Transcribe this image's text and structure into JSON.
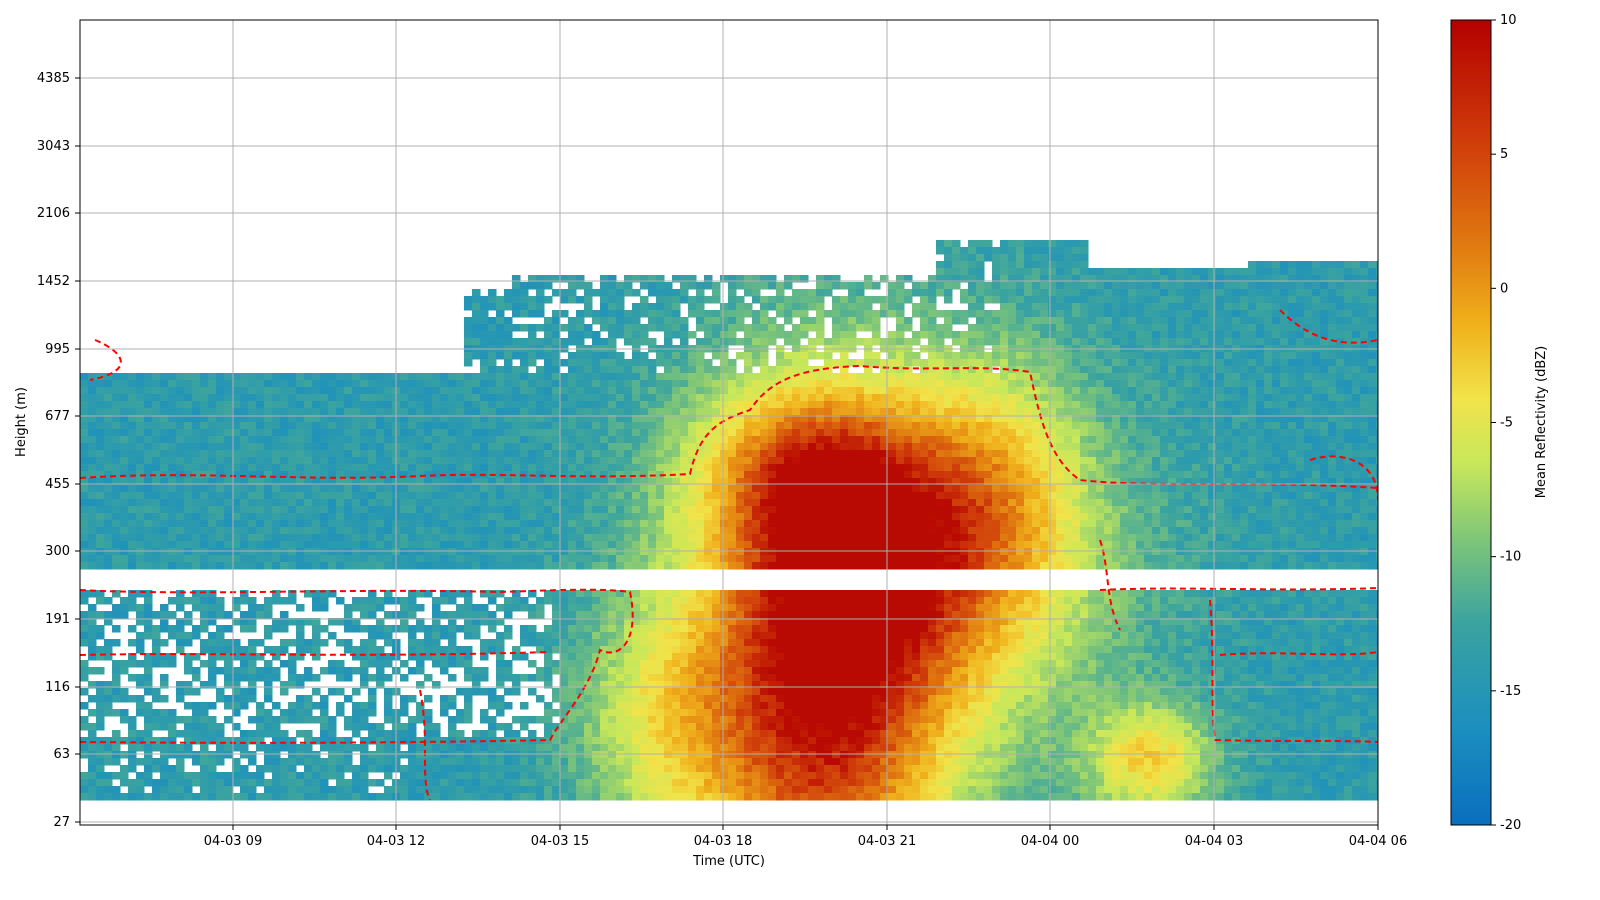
{
  "chart_data": {
    "type": "heatmap",
    "xlabel": "Time (UTC)",
    "ylabel": "Height (m)",
    "colorbar_label": "Mean Reflectivity (dBZ)",
    "x_ticks": [
      "04-03 09",
      "04-03 12",
      "04-03 15",
      "04-03 18",
      "04-03 21",
      "04-04 00",
      "04-04 03",
      "04-04 06"
    ],
    "x_range": [
      "04-03 06:10",
      "04-04 06:00"
    ],
    "y_ticks": [
      "27",
      "63",
      "116",
      "191",
      "300",
      "455",
      "677",
      "995",
      "1452",
      "2106",
      "3043",
      "4385"
    ],
    "y_scale": "log-like (ticks equally spaced)",
    "colorbar_ticks": [
      "10",
      "5",
      "0",
      "-5",
      "-10",
      "-15",
      "-20"
    ],
    "colorbar_range": [
      -20,
      10
    ],
    "colormap": [
      "#0a6ebd",
      "#1b8fbf",
      "#3aa3a0",
      "#7bc47a",
      "#c8e85a",
      "#f2e34a",
      "#f0b21c",
      "#e07a10",
      "#cf3c0a",
      "#b40000"
    ],
    "contour_style": "red dashed (#ff0000)",
    "grid": true,
    "features": [
      {
        "description": "Strong echo core (~0 to 8 dBZ) from the ground up to about 500 m"
      },
      {
        "description": "Blank band (no data) between about 220 and 260 m across all times"
      },
      {
        "description": "Weaker echoes (-18 to -13 dBZ) extending up to about 1500 m"
      }
    ]
  }
}
